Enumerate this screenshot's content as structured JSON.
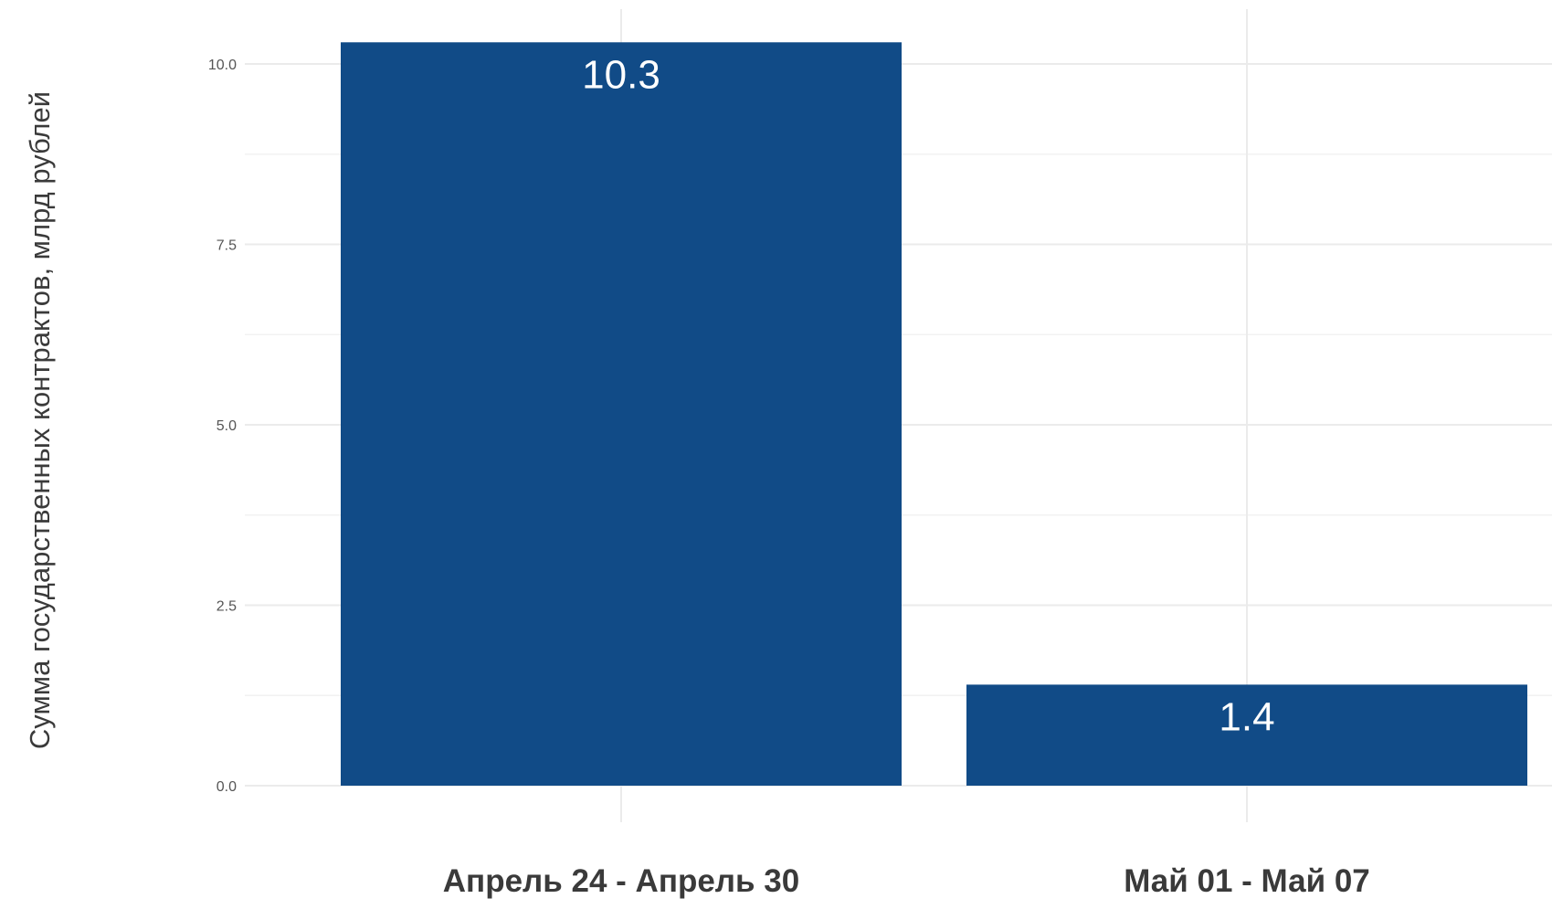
{
  "chart_data": {
    "type": "bar",
    "categories": [
      "Апрель 24 - Апрель 30",
      "Май 01 - Май 07"
    ],
    "values": [
      10.3,
      1.4
    ],
    "value_labels": [
      "10.3",
      "1.4"
    ],
    "title": "",
    "xlabel": "",
    "ylabel": "Сумма государственных контрактов, млрд рублей",
    "ylim": [
      0,
      10.3
    ],
    "yticks": [
      0.0,
      2.5,
      5.0,
      7.5,
      10.0
    ],
    "ytick_labels": [
      "0.0",
      "2.5",
      "5.0",
      "7.5",
      "10.0"
    ],
    "grid": true,
    "legend": "none",
    "colors": {
      "bar": "#114b87",
      "value_label": "#ffffff",
      "grid": "#ebebeb",
      "text": "#3a3a3a"
    }
  }
}
